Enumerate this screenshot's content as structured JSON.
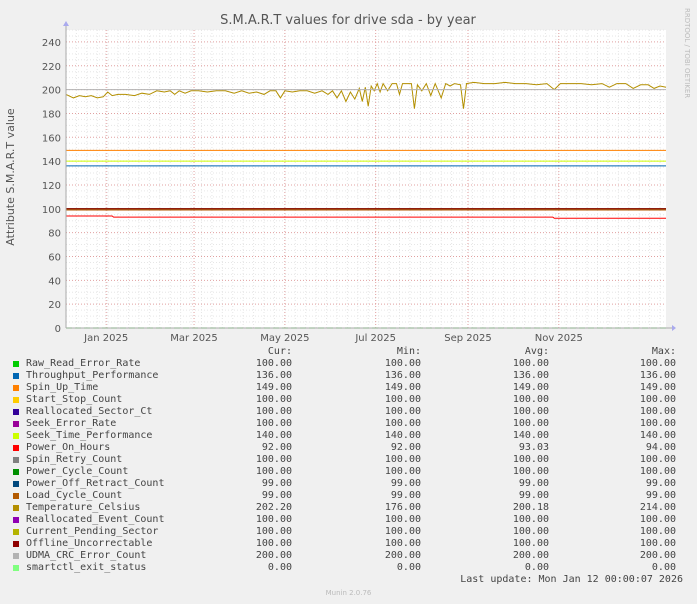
{
  "chart_data": {
    "type": "line",
    "title": "S.M.A.R.T values for drive sda - by year",
    "ylabel": "Attribute S.M.A.R.T value",
    "ylim": [
      0,
      250
    ],
    "yticks": [
      0,
      20,
      40,
      60,
      80,
      100,
      120,
      140,
      160,
      180,
      200,
      220,
      240
    ],
    "xlim": [
      "2024-12-05",
      "2026-01-12"
    ],
    "xticks": [
      {
        "label": "Jan 2025",
        "date": "2025-01-01"
      },
      {
        "label": "Mar 2025",
        "date": "2025-03-01"
      },
      {
        "label": "May 2025",
        "date": "2025-05-01"
      },
      {
        "label": "Jul 2025",
        "date": "2025-07-01"
      },
      {
        "label": "Sep 2025",
        "date": "2025-09-01"
      },
      {
        "label": "Nov 2025",
        "date": "2025-11-01"
      }
    ],
    "grid": true,
    "headers": {
      "cur": "Cur:",
      "min": "Min:",
      "avg": "Avg:",
      "max": "Max:"
    },
    "series": [
      {
        "name": "Raw_Read_Error_Rate",
        "color": "#00cc00",
        "cur": "100.00",
        "min": "100.00",
        "avg": "100.00",
        "max": "100.00",
        "value": 100
      },
      {
        "name": "Throughput_Performance",
        "color": "#0066b3",
        "cur": "136.00",
        "min": "136.00",
        "avg": "136.00",
        "max": "136.00",
        "value": 136
      },
      {
        "name": "Spin_Up_Time",
        "color": "#ff8000",
        "cur": "149.00",
        "min": "149.00",
        "avg": "149.00",
        "max": "149.00",
        "value": 149
      },
      {
        "name": "Start_Stop_Count",
        "color": "#ffcc00",
        "cur": "100.00",
        "min": "100.00",
        "avg": "100.00",
        "max": "100.00",
        "value": 100
      },
      {
        "name": "Reallocated_Sector_Ct",
        "color": "#330099",
        "cur": "100.00",
        "min": "100.00",
        "avg": "100.00",
        "max": "100.00",
        "value": 100
      },
      {
        "name": "Seek_Error_Rate",
        "color": "#990099",
        "cur": "100.00",
        "min": "100.00",
        "avg": "100.00",
        "max": "100.00",
        "value": 100
      },
      {
        "name": "Seek_Time_Performance",
        "color": "#ccff00",
        "cur": "140.00",
        "min": "140.00",
        "avg": "140.00",
        "max": "140.00",
        "value": 140
      },
      {
        "name": "Power_On_Hours",
        "color": "#ff0000",
        "cur": "92.00",
        "min": "92.00",
        "avg": "93.03",
        "max": "94.00",
        "points": [
          [
            "2024-12-05",
            94
          ],
          [
            "2025-01-05",
            94
          ],
          [
            "2025-01-06",
            93
          ],
          [
            "2025-10-28",
            93
          ],
          [
            "2025-10-29",
            92
          ],
          [
            "2026-01-12",
            92
          ]
        ]
      },
      {
        "name": "Spin_Retry_Count",
        "color": "#808080",
        "cur": "100.00",
        "min": "100.00",
        "avg": "100.00",
        "max": "100.00",
        "value": 100
      },
      {
        "name": "Power_Cycle_Count",
        "color": "#008f00",
        "cur": "100.00",
        "min": "100.00",
        "avg": "100.00",
        "max": "100.00",
        "value": 100
      },
      {
        "name": "Power_Off_Retract_Count",
        "color": "#00487d",
        "cur": "99.00",
        "min": "99.00",
        "avg": "99.00",
        "max": "99.00",
        "value": 99
      },
      {
        "name": "Load_Cycle_Count",
        "color": "#b35a00",
        "cur": "99.00",
        "min": "99.00",
        "avg": "99.00",
        "max": "99.00",
        "value": 99
      },
      {
        "name": "Temperature_Celsius",
        "color": "#b38f00",
        "cur": "202.20",
        "min": "176.00",
        "avg": "200.18",
        "max": "214.00",
        "points": [
          [
            "2024-12-05",
            196
          ],
          [
            "2024-12-10",
            193
          ],
          [
            "2024-12-14",
            195
          ],
          [
            "2024-12-18",
            194
          ],
          [
            "2024-12-22",
            195
          ],
          [
            "2024-12-26",
            193
          ],
          [
            "2024-12-30",
            194
          ],
          [
            "2025-01-02",
            198
          ],
          [
            "2025-01-05",
            195
          ],
          [
            "2025-01-09",
            196
          ],
          [
            "2025-01-14",
            196
          ],
          [
            "2025-01-20",
            195
          ],
          [
            "2025-01-25",
            197
          ],
          [
            "2025-01-30",
            196
          ],
          [
            "2025-02-04",
            199
          ],
          [
            "2025-02-09",
            198
          ],
          [
            "2025-02-13",
            199
          ],
          [
            "2025-02-16",
            196
          ],
          [
            "2025-02-19",
            199
          ],
          [
            "2025-02-23",
            197
          ],
          [
            "2025-02-27",
            199
          ],
          [
            "2025-03-04",
            199
          ],
          [
            "2025-03-10",
            198
          ],
          [
            "2025-03-16",
            199
          ],
          [
            "2025-03-22",
            199
          ],
          [
            "2025-03-28",
            197
          ],
          [
            "2025-04-02",
            199
          ],
          [
            "2025-04-07",
            197
          ],
          [
            "2025-04-12",
            198
          ],
          [
            "2025-04-17",
            196
          ],
          [
            "2025-04-21",
            199
          ],
          [
            "2025-04-25",
            199
          ],
          [
            "2025-04-28",
            193
          ],
          [
            "2025-05-01",
            199
          ],
          [
            "2025-05-06",
            198
          ],
          [
            "2025-05-11",
            199
          ],
          [
            "2025-05-16",
            199
          ],
          [
            "2025-05-21",
            197
          ],
          [
            "2025-05-26",
            199
          ],
          [
            "2025-05-30",
            196
          ],
          [
            "2025-06-02",
            199
          ],
          [
            "2025-06-05",
            193
          ],
          [
            "2025-06-08",
            199
          ],
          [
            "2025-06-11",
            190
          ],
          [
            "2025-06-14",
            198
          ],
          [
            "2025-06-17",
            192
          ],
          [
            "2025-06-20",
            201
          ],
          [
            "2025-06-22",
            190
          ],
          [
            "2025-06-24",
            202
          ],
          [
            "2025-06-26",
            186
          ],
          [
            "2025-06-28",
            203
          ],
          [
            "2025-06-30",
            199
          ],
          [
            "2025-07-02",
            205
          ],
          [
            "2025-07-04",
            198
          ],
          [
            "2025-07-06",
            205
          ],
          [
            "2025-07-09",
            199
          ],
          [
            "2025-07-12",
            205
          ],
          [
            "2025-07-15",
            205
          ],
          [
            "2025-07-17",
            196
          ],
          [
            "2025-07-19",
            205
          ],
          [
            "2025-07-22",
            205
          ],
          [
            "2025-07-25",
            205
          ],
          [
            "2025-07-27",
            184
          ],
          [
            "2025-07-29",
            204
          ],
          [
            "2025-08-01",
            199
          ],
          [
            "2025-08-04",
            205
          ],
          [
            "2025-08-07",
            195
          ],
          [
            "2025-08-10",
            205
          ],
          [
            "2025-08-14",
            193
          ],
          [
            "2025-08-17",
            205
          ],
          [
            "2025-08-20",
            203
          ],
          [
            "2025-08-23",
            205
          ],
          [
            "2025-08-27",
            204
          ],
          [
            "2025-08-29",
            184
          ],
          [
            "2025-08-31",
            205
          ],
          [
            "2025-09-05",
            206
          ],
          [
            "2025-09-12",
            205
          ],
          [
            "2025-09-19",
            205
          ],
          [
            "2025-09-26",
            206
          ],
          [
            "2025-10-03",
            205
          ],
          [
            "2025-10-10",
            205
          ],
          [
            "2025-10-17",
            204
          ],
          [
            "2025-10-24",
            205
          ],
          [
            "2025-10-29",
            200
          ],
          [
            "2025-11-02",
            205
          ],
          [
            "2025-11-09",
            205
          ],
          [
            "2025-11-16",
            205
          ],
          [
            "2025-11-23",
            204
          ],
          [
            "2025-11-30",
            205
          ],
          [
            "2025-12-05",
            202
          ],
          [
            "2025-12-10",
            205
          ],
          [
            "2025-12-16",
            205
          ],
          [
            "2025-12-21",
            201
          ],
          [
            "2025-12-26",
            204
          ],
          [
            "2025-12-31",
            204
          ],
          [
            "2026-01-04",
            201
          ],
          [
            "2026-01-08",
            203
          ],
          [
            "2026-01-12",
            202
          ]
        ]
      },
      {
        "name": "Reallocated_Event_Count",
        "color": "#8f00b3",
        "cur": "100.00",
        "min": "100.00",
        "avg": "100.00",
        "max": "100.00",
        "value": 100
      },
      {
        "name": "Current_Pending_Sector",
        "color": "#b3b300",
        "cur": "100.00",
        "min": "100.00",
        "avg": "100.00",
        "max": "100.00",
        "value": 100
      },
      {
        "name": "Offline_Uncorrectable",
        "color": "#8f0000",
        "cur": "100.00",
        "min": "100.00",
        "avg": "100.00",
        "max": "100.00",
        "value": 100
      },
      {
        "name": "UDMA_CRC_Error_Count",
        "color": "#b3b3b3",
        "cur": "200.00",
        "min": "200.00",
        "avg": "200.00",
        "max": "200.00",
        "value": 200
      },
      {
        "name": "smartctl_exit_status",
        "color": "#80ff80",
        "cur": "0.00",
        "min": "0.00",
        "avg": "0.00",
        "max": "0.00",
        "value": 0
      }
    ]
  },
  "footer": {
    "last_update": "Last update: Mon Jan 12 00:00:07 2026",
    "munin": "Munin 2.0.76",
    "rrdtool": "RRDTOOL / TOBI OETIKER"
  }
}
